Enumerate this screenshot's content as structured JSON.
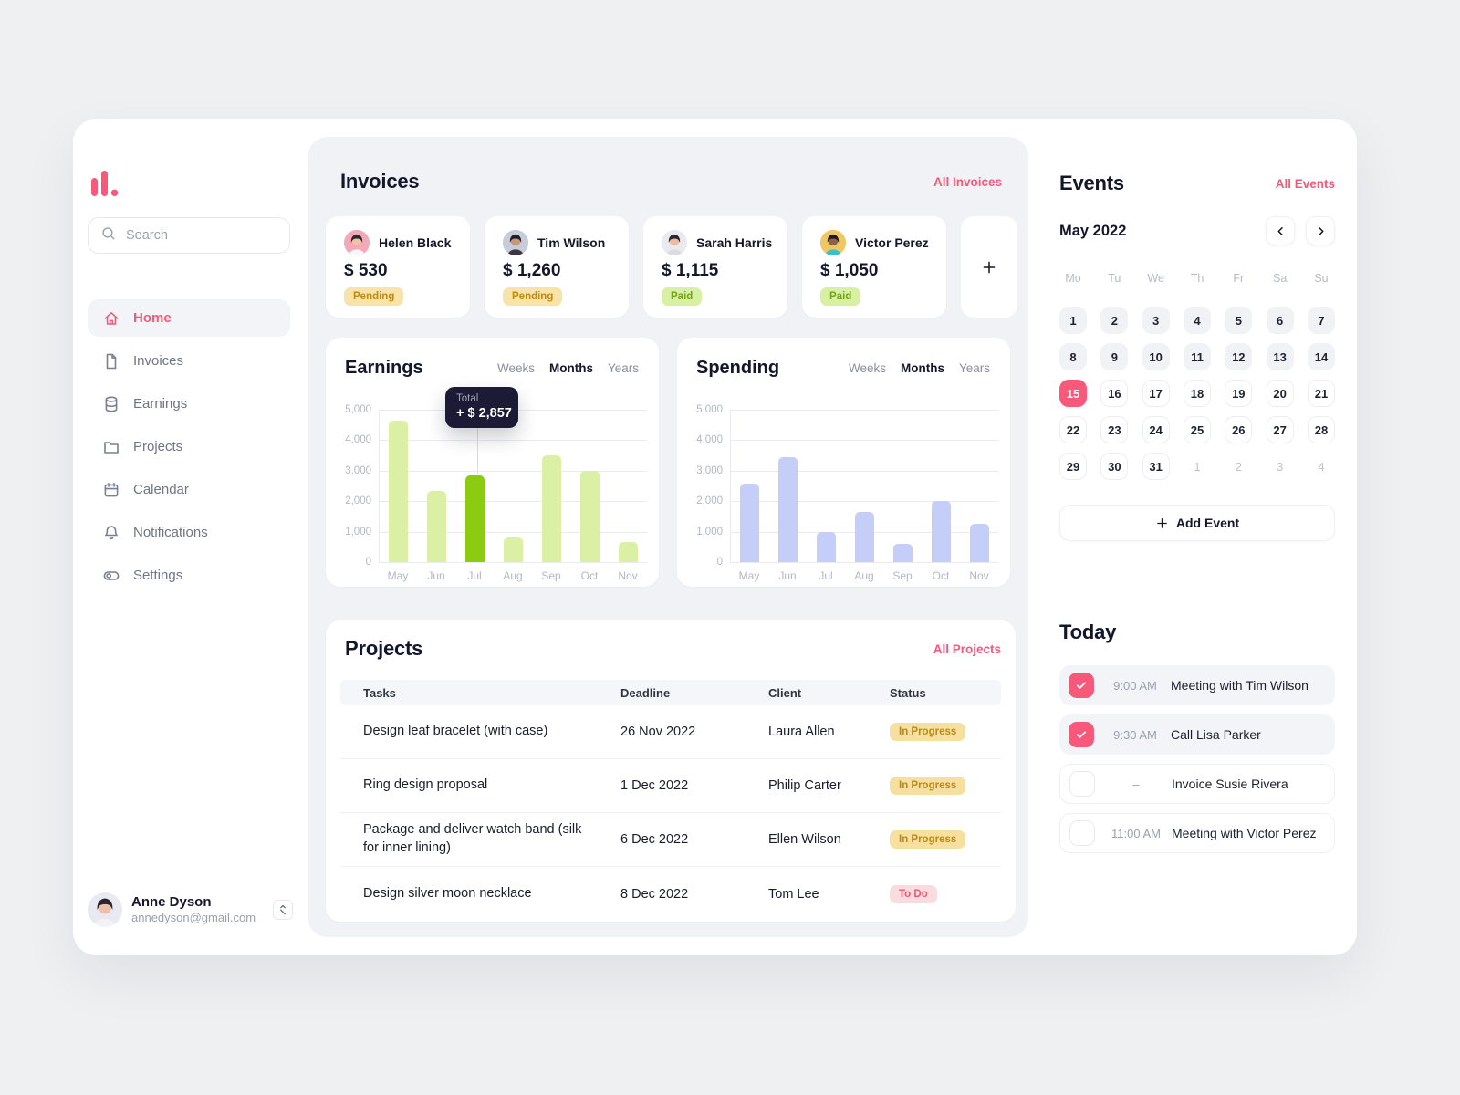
{
  "colors": {
    "accent": "#F8587A",
    "panel_bg": "#F1F2F6",
    "page_bg": "#EFF0F2",
    "heading": "#14172B",
    "earnings_bar": "#DBF0A4",
    "earnings_bar_highlight": "#8BCB12",
    "spending_bar": "#C5CEF8",
    "pending_badge_bg": "#F8E3A9",
    "pending_badge_text": "#C08A15",
    "paid_badge_bg": "#D8F0A3",
    "paid_badge_text": "#72A414",
    "todo_badge_bg": "#FADCE0",
    "todo_badge_text": "#E85A70",
    "tooltip_bg": "#1D1A35"
  },
  "sidebar": {
    "search_placeholder": "Search",
    "items": [
      {
        "label": "Home",
        "icon": "home",
        "active": true
      },
      {
        "label": "Invoices",
        "icon": "document",
        "active": false
      },
      {
        "label": "Earnings",
        "icon": "database",
        "active": false
      },
      {
        "label": "Projects",
        "icon": "folder",
        "active": false
      },
      {
        "label": "Calendar",
        "icon": "calendar",
        "active": false
      },
      {
        "label": "Notifications",
        "icon": "bell",
        "active": false
      },
      {
        "label": "Settings",
        "icon": "toggle",
        "active": false
      }
    ],
    "profile": {
      "name": "Anne Dyson",
      "email": "annedyson@gmail.com",
      "avatar": {
        "bg": "#E8E9F1",
        "hair": "#2A2430",
        "skin": "#EDC0A9",
        "shirt": "#F2F3F7"
      }
    }
  },
  "invoices": {
    "title": "Invoices",
    "link": "All Invoices",
    "cards": [
      {
        "name": "Helen Black",
        "amount": "$ 530",
        "status": "Pending",
        "status_type": "pending",
        "avatar": {
          "bg": "#F3A9B7",
          "hair": "#2E2833",
          "skin": "#F0C0A8",
          "shirt": "#F7F8FB"
        }
      },
      {
        "name": "Tim Wilson",
        "amount": "$ 1,260",
        "status": "Pending",
        "status_type": "pending",
        "avatar": {
          "bg": "#C7CCD8",
          "hair": "#231F29",
          "skin": "#C59878",
          "shirt": "#3B3745"
        }
      },
      {
        "name": "Sarah Harris",
        "amount": "$ 1,115",
        "status": "Paid",
        "status_type": "paid",
        "avatar": {
          "bg": "#E9EAEF",
          "hair": "#2B2630",
          "skin": "#ECBBA2",
          "shirt": "#D9DCE3"
        }
      },
      {
        "name": "Victor Perez",
        "amount": "$ 1,050",
        "status": "Paid",
        "status_type": "paid",
        "avatar": {
          "bg": "#EFC763",
          "hair": "#201A23",
          "skin": "#8D6143",
          "shirt": "#33C3C9"
        }
      }
    ]
  },
  "chart_data": [
    {
      "type": "bar",
      "title": "Earnings",
      "categories": [
        "May",
        "Jun",
        "Jul",
        "Aug",
        "Sep",
        "Oct",
        "Nov"
      ],
      "values": [
        4650,
        2350,
        2857,
        800,
        3500,
        3000,
        650
      ],
      "ylim": [
        0,
        5000
      ],
      "yticks": [
        "5,000",
        "4,000",
        "3,000",
        "2,000",
        "1,000",
        "0"
      ],
      "toggle": [
        "Weeks",
        "Months",
        "Years"
      ],
      "active_toggle": "Months",
      "bar_color": "#DBF0A4",
      "highlight_color": "#8BCB12",
      "highlight_index": 2,
      "tooltip": {
        "label": "Total",
        "value": "+ $ 2,857"
      },
      "grid": true,
      "legend": false
    },
    {
      "type": "bar",
      "title": "Spending",
      "categories": [
        "May",
        "Jun",
        "Jul",
        "Aug",
        "Sep",
        "Oct",
        "Nov"
      ],
      "values": [
        2570,
        3450,
        1000,
        1650,
        600,
        2000,
        1250
      ],
      "ylim": [
        0,
        5000
      ],
      "yticks": [
        "5,000",
        "4,000",
        "3,000",
        "2,000",
        "1,000",
        "0"
      ],
      "toggle": [
        "Weeks",
        "Months",
        "Years"
      ],
      "active_toggle": "Months",
      "bar_color": "#C5CEF8",
      "highlight_index": -1,
      "grid": true,
      "legend": false
    }
  ],
  "projects": {
    "title": "Projects",
    "link": "All Projects",
    "columns": [
      "Tasks",
      "Deadline",
      "Client",
      "Status"
    ],
    "rows": [
      {
        "task": "Design leaf bracelet (with case)",
        "deadline": "26 Nov 2022",
        "client": "Laura Allen",
        "status": "In Progress",
        "status_type": "progress"
      },
      {
        "task": "Ring design proposal",
        "deadline": "1 Dec 2022",
        "client": "Philip Carter",
        "status": "In Progress",
        "status_type": "progress"
      },
      {
        "task": "Package and deliver watch band (silk for inner lining)",
        "deadline": "6 Dec 2022",
        "client": "Ellen Wilson",
        "status": "In Progress",
        "status_type": "progress"
      },
      {
        "task": "Design silver moon necklace",
        "deadline": "8 Dec 2022",
        "client": "Tom Lee",
        "status": "To Do",
        "status_type": "todo"
      }
    ]
  },
  "events": {
    "title": "Events",
    "link": "All Events",
    "month": "May 2022",
    "weekdays": [
      "Mo",
      "Tu",
      "We",
      "Th",
      "Fr",
      "Sa",
      "Su"
    ],
    "days": [
      {
        "n": 1,
        "t": "past"
      },
      {
        "n": 2,
        "t": "past"
      },
      {
        "n": 3,
        "t": "past"
      },
      {
        "n": 4,
        "t": "past"
      },
      {
        "n": 5,
        "t": "past"
      },
      {
        "n": 6,
        "t": "past"
      },
      {
        "n": 7,
        "t": "past"
      },
      {
        "n": 8,
        "t": "past"
      },
      {
        "n": 9,
        "t": "past"
      },
      {
        "n": 10,
        "t": "past"
      },
      {
        "n": 11,
        "t": "past"
      },
      {
        "n": 12,
        "t": "past"
      },
      {
        "n": 13,
        "t": "past"
      },
      {
        "n": 14,
        "t": "past"
      },
      {
        "n": 15,
        "t": "selected"
      },
      {
        "n": 16,
        "t": "future"
      },
      {
        "n": 17,
        "t": "future"
      },
      {
        "n": 18,
        "t": "future"
      },
      {
        "n": 19,
        "t": "future"
      },
      {
        "n": 20,
        "t": "future"
      },
      {
        "n": 21,
        "t": "future"
      },
      {
        "n": 22,
        "t": "future"
      },
      {
        "n": 23,
        "t": "future"
      },
      {
        "n": 24,
        "t": "future"
      },
      {
        "n": 25,
        "t": "future"
      },
      {
        "n": 26,
        "t": "future"
      },
      {
        "n": 27,
        "t": "future"
      },
      {
        "n": 28,
        "t": "future"
      },
      {
        "n": 29,
        "t": "future"
      },
      {
        "n": 30,
        "t": "future"
      },
      {
        "n": 31,
        "t": "future"
      },
      {
        "n": 1,
        "t": "muted"
      },
      {
        "n": 2,
        "t": "muted"
      },
      {
        "n": 3,
        "t": "muted"
      },
      {
        "n": 4,
        "t": "muted"
      }
    ],
    "add_label": "Add Event"
  },
  "today": {
    "title": "Today",
    "items": [
      {
        "time": "9:00 AM",
        "label": "Meeting with Tim Wilson",
        "done": true
      },
      {
        "time": "9:30 AM",
        "label": "Call Lisa Parker",
        "done": true
      },
      {
        "time": "–",
        "label": "Invoice Susie Rivera",
        "done": false
      },
      {
        "time": "11:00 AM",
        "label": "Meeting with Victor Perez",
        "done": false
      }
    ]
  }
}
